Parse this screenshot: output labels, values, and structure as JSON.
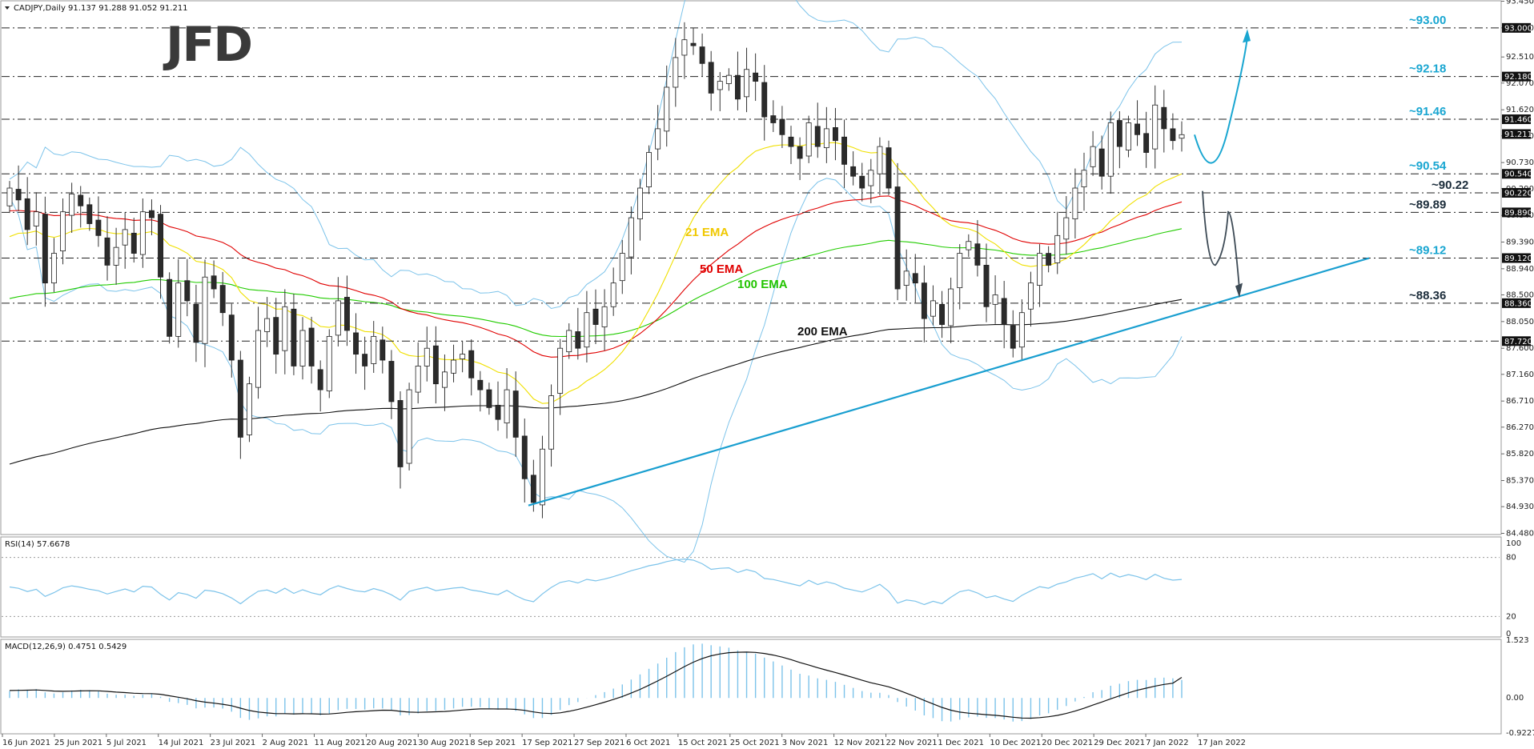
{
  "header": {
    "main": "CADJPY,Daily  91.137 91.288 91.052 91.211",
    "rsi": "RSI(14) 57.6678",
    "macd": "MACD(12,26,9) 0.4751 0.5429"
  },
  "logo": "JFD",
  "colors": {
    "up": "#ffffff",
    "down": "#2b2b2b",
    "wick": "#333333",
    "ema21": "#f0e000",
    "ema50": "#e00000",
    "ema100": "#22cc00",
    "ema200": "#111111",
    "boll": "#7cc3ea",
    "level": "#19a6d1",
    "trend": "#1a9fd0",
    "arrow_up": "#19a6d1",
    "arrow_down": "#3d4a55"
  },
  "chart_data": {
    "type": "candlestick",
    "symbol": "CADJPY",
    "timeframe": "Daily",
    "ylim": [
      84.48,
      93.45
    ],
    "yticks": [
      "93.450",
      "93.000",
      "92.510",
      "92.070",
      "91.620",
      "91.180",
      "90.730",
      "90.290",
      "89.840",
      "89.390",
      "88.940",
      "88.500",
      "88.050",
      "87.600",
      "87.160",
      "86.710",
      "86.270",
      "85.820",
      "85.370",
      "84.930",
      "84.480"
    ],
    "xticks": [
      "16 Jun 2021",
      "25 Jun 2021",
      "5 Jul 2021",
      "14 Jul 2021",
      "23 Jul 2021",
      "2 Aug 2021",
      "11 Aug 2021",
      "20 Aug 2021",
      "30 Aug 2021",
      "8 Sep 2021",
      "17 Sep 2021",
      "27 Sep 2021",
      "6 Oct 2021",
      "15 Oct 2021",
      "25 Oct 2021",
      "3 Nov 2021",
      "12 Nov 2021",
      "22 Nov 2021",
      "1 Dec 2021",
      "10 Dec 2021",
      "20 Dec 2021",
      "29 Dec 2021",
      "7 Jan 2022",
      "17 Jan 2022"
    ],
    "closes": [
      90.3,
      90.1,
      89.6,
      89.9,
      88.7,
      89.2,
      89.9,
      90.2,
      90.0,
      89.7,
      89.5,
      89.0,
      89.3,
      89.6,
      89.2,
      89.9,
      89.8,
      88.8,
      87.8,
      88.7,
      88.4,
      87.7,
      88.8,
      88.6,
      88.2,
      87.4,
      86.1,
      87.0,
      87.9,
      88.1,
      87.5,
      88.3,
      87.3,
      87.9,
      87.3,
      86.9,
      87.8,
      88.4,
      87.9,
      87.5,
      87.3,
      87.8,
      87.4,
      86.7,
      85.6,
      86.9,
      87.3,
      87.6,
      87.0,
      87.2,
      87.4,
      87.5,
      87.1,
      86.9,
      86.6,
      86.4,
      86.9,
      86.1,
      85.4,
      85.0,
      85.9,
      86.8,
      87.6,
      87.9,
      87.6,
      88.2,
      88.0,
      88.3,
      88.7,
      89.2,
      89.8,
      90.3,
      90.9,
      91.3,
      92.0,
      92.5,
      92.8,
      92.7,
      92.4,
      91.9,
      92.1,
      92.2,
      91.8,
      92.3,
      92.1,
      91.5,
      91.4,
      91.2,
      91.0,
      90.8,
      91.4,
      91.0,
      91.3,
      91.1,
      90.7,
      90.5,
      90.3,
      90.6,
      91.0,
      90.3,
      88.6,
      88.9,
      88.7,
      88.1,
      88.4,
      88.0,
      88.6,
      89.2,
      89.4,
      89.0,
      88.3,
      88.5,
      88.0,
      87.6,
      88.2,
      88.7,
      89.2,
      89.0,
      89.5,
      89.8,
      90.3,
      90.6,
      91.0,
      90.5,
      91.4,
      91.0,
      91.4,
      91.2,
      90.9,
      91.7,
      91.3,
      91.1,
      91.2
    ],
    "ema_labels": [
      "21 EMA",
      "50 EMA",
      "100 EMA",
      "200 EMA"
    ],
    "levels": [
      {
        "value": 93.0,
        "label": "~93.00",
        "badge": "93.000"
      },
      {
        "value": 92.18,
        "label": "~92.18",
        "badge": "92.180"
      },
      {
        "value": 91.46,
        "label": "~91.46",
        "badge": "91.460"
      },
      {
        "value": 90.54,
        "label": "~90.54",
        "badge": "90.540"
      },
      {
        "value": 90.22,
        "label": "~90.22",
        "badge": "90.220"
      },
      {
        "value": 89.89,
        "label": "~89.89",
        "badge": "89.890"
      },
      {
        "value": 89.12,
        "label": "~89.12",
        "badge": "89.120"
      },
      {
        "value": 88.36,
        "label": "~88.36",
        "badge": "88.360"
      },
      {
        "value": 87.72,
        "label": "",
        "badge": "87.720"
      }
    ],
    "current_price": "91.211",
    "rsi": {
      "yticks": [
        "100",
        "80",
        "20",
        "0"
      ],
      "value": 57.6678
    },
    "macd": {
      "yticks": [
        "1.523",
        "0.00",
        "-0.9227"
      ],
      "main": 0.4751,
      "signal": 0.5429
    }
  }
}
